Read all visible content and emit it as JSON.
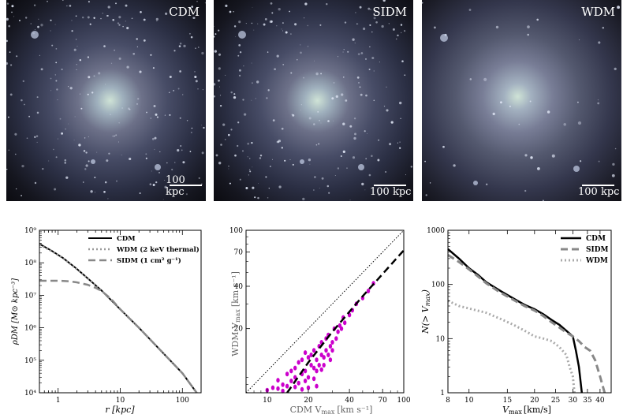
{
  "simulations": [
    {
      "label": "CDM",
      "scale_bar": "100 kpc"
    },
    {
      "label": "SIDM",
      "scale_bar": "100 kpc"
    },
    {
      "label": "WDM",
      "scale_bar": "100 kpc"
    }
  ],
  "chart_data": [
    {
      "type": "line",
      "xlabel": "r [kpc]",
      "ylabel": "ρDM [M⊙ kpc⁻³]",
      "xscale": "log",
      "yscale": "log",
      "xlim": [
        0.5,
        200
      ],
      "ylim": [
        10000,
        1000000000
      ],
      "x_ticks": [
        "1",
        "10",
        "100"
      ],
      "y_ticks": [
        "10⁴",
        "10⁵",
        "10⁶",
        "10⁷",
        "10⁸",
        "10⁹"
      ],
      "legend_position": "top-right",
      "series": [
        {
          "name": "CDM",
          "color": "#000000",
          "style": "solid",
          "x": [
            0.5,
            0.8,
            1.2,
            2,
            3,
            5,
            10,
            20,
            50,
            100,
            170
          ],
          "y": [
            380000000,
            230000000,
            140000000,
            65000000,
            33000000,
            14000000,
            3700000,
            1000000,
            160000,
            40000,
            10000
          ]
        },
        {
          "name": "WDM (2 keV thermal)",
          "color": "#999999",
          "style": "dotted",
          "x": [
            0.5,
            0.8,
            1.2,
            2,
            3,
            5,
            10,
            20,
            50,
            100,
            170
          ],
          "y": [
            360000000,
            225000000,
            138000000,
            64000000,
            33000000,
            14000000,
            3700000,
            1000000,
            160000,
            40000,
            10000
          ]
        },
        {
          "name": "SIDM (1 cm² g⁻¹)",
          "color": "#888888",
          "style": "dashed",
          "x": [
            0.5,
            1,
            1.5,
            2,
            3,
            4,
            5,
            7,
            10,
            20,
            50,
            100,
            170
          ],
          "y": [
            28000000,
            28000000,
            27000000,
            25000000,
            21000000,
            17000000,
            13500000,
            8000000,
            3700000,
            1000000,
            160000,
            40000,
            10000
          ]
        }
      ]
    },
    {
      "type": "scatter",
      "xlabel": "CDM V",
      "xlabel_sub": "max",
      "xlabel_unit": "[km s⁻¹]",
      "ylabel": "WDM V",
      "ylabel_sub": "max",
      "ylabel_unit": "[km s⁻¹]",
      "xscale": "log",
      "yscale": "log",
      "xlim": [
        7,
        100
      ],
      "ylim": [
        7,
        100
      ],
      "x_ticks": [
        "10",
        "20",
        "40",
        "70",
        "100"
      ],
      "y_ticks": [
        "20",
        "40",
        "70",
        "100"
      ],
      "one_to_one_line": true,
      "fit_line": {
        "x": [
          14,
          20,
          30,
          50,
          100
        ],
        "y": [
          7,
          11.5,
          19,
          34,
          72
        ]
      },
      "point_color": "#cc00cc",
      "points": [
        [
          12,
          7.5
        ],
        [
          13,
          8
        ],
        [
          14,
          7.8
        ],
        [
          15,
          8.5
        ],
        [
          16,
          9
        ],
        [
          17,
          8.2
        ],
        [
          18,
          9.5
        ],
        [
          19,
          10
        ],
        [
          20,
          9
        ],
        [
          21,
          11
        ],
        [
          22,
          10.5
        ],
        [
          23,
          12
        ],
        [
          24,
          11
        ],
        [
          25,
          13
        ],
        [
          26,
          12.5
        ],
        [
          27,
          14
        ],
        [
          28,
          13
        ],
        [
          29,
          15
        ],
        [
          30,
          16
        ],
        [
          32,
          17
        ],
        [
          33,
          19
        ],
        [
          35,
          20
        ],
        [
          37,
          22
        ],
        [
          40,
          25
        ],
        [
          42,
          27
        ],
        [
          45,
          30
        ],
        [
          50,
          33
        ],
        [
          55,
          37
        ],
        [
          60,
          42
        ],
        [
          16,
          10.5
        ],
        [
          17,
          11.5
        ],
        [
          18,
          12
        ],
        [
          19,
          8.5
        ],
        [
          21,
          13
        ],
        [
          22,
          14
        ],
        [
          23,
          10
        ],
        [
          24,
          15
        ],
        [
          25,
          16
        ],
        [
          26,
          11
        ],
        [
          27,
          17
        ],
        [
          28,
          18
        ],
        [
          14,
          9.5
        ],
        [
          15,
          10
        ],
        [
          13,
          7.2
        ],
        [
          12,
          8.6
        ],
        [
          20,
          12.5
        ],
        [
          19,
          13.5
        ],
        [
          18,
          7.4
        ],
        [
          22,
          8.8
        ],
        [
          25,
          10.2
        ],
        [
          30,
          14
        ],
        [
          31,
          20
        ],
        [
          34,
          21
        ],
        [
          36,
          24
        ],
        [
          10,
          7.3
        ],
        [
          11,
          7.6
        ],
        [
          16,
          7.7
        ],
        [
          20,
          7.6
        ],
        [
          23,
          7.8
        ],
        [
          29,
          12
        ]
      ]
    },
    {
      "type": "line",
      "xlabel": "V",
      "xlabel_sub": "max",
      "xlabel_unit": "[km/s]",
      "ylabel": "N(> V",
      "ylabel_sub": "max",
      "ylabel_end": ")",
      "xscale": "log",
      "yscale": "log",
      "xlim": [
        8,
        45
      ],
      "ylim": [
        1,
        1000
      ],
      "x_ticks": [
        "8",
        "10",
        "15",
        "20",
        "25",
        "30",
        "35",
        "40"
      ],
      "y_ticks": [
        "1",
        "10",
        "100",
        "1000"
      ],
      "legend_position": "top-right",
      "series": [
        {
          "name": "CDM",
          "color": "#000000",
          "style": "solid",
          "x": [
            8,
            9,
            10,
            11,
            12,
            14,
            16,
            18,
            20,
            22,
            24,
            26,
            28,
            30,
            31,
            32,
            33
          ],
          "y": [
            450,
            300,
            200,
            150,
            110,
            75,
            55,
            42,
            35,
            28,
            22,
            18,
            14,
            11,
            6,
            3,
            1
          ]
        },
        {
          "name": "SIDM",
          "color": "#888888",
          "style": "dashed",
          "x": [
            8,
            9,
            10,
            11,
            12,
            14,
            16,
            18,
            20,
            22,
            24,
            26,
            28,
            30,
            32,
            34,
            36,
            38,
            40,
            42
          ],
          "y": [
            350,
            260,
            190,
            140,
            105,
            70,
            52,
            40,
            33,
            26,
            20,
            16,
            13,
            11,
            9,
            7,
            6,
            4,
            2,
            1
          ]
        },
        {
          "name": "WDM",
          "color": "#aaaaaa",
          "style": "dotted",
          "x": [
            8,
            9,
            10,
            12,
            14,
            16,
            18,
            20,
            22,
            24,
            26,
            28,
            29,
            30,
            30.5
          ],
          "y": [
            50,
            40,
            36,
            30,
            23,
            18,
            14,
            11,
            10,
            9,
            7,
            5,
            3,
            2,
            1
          ]
        }
      ]
    }
  ]
}
